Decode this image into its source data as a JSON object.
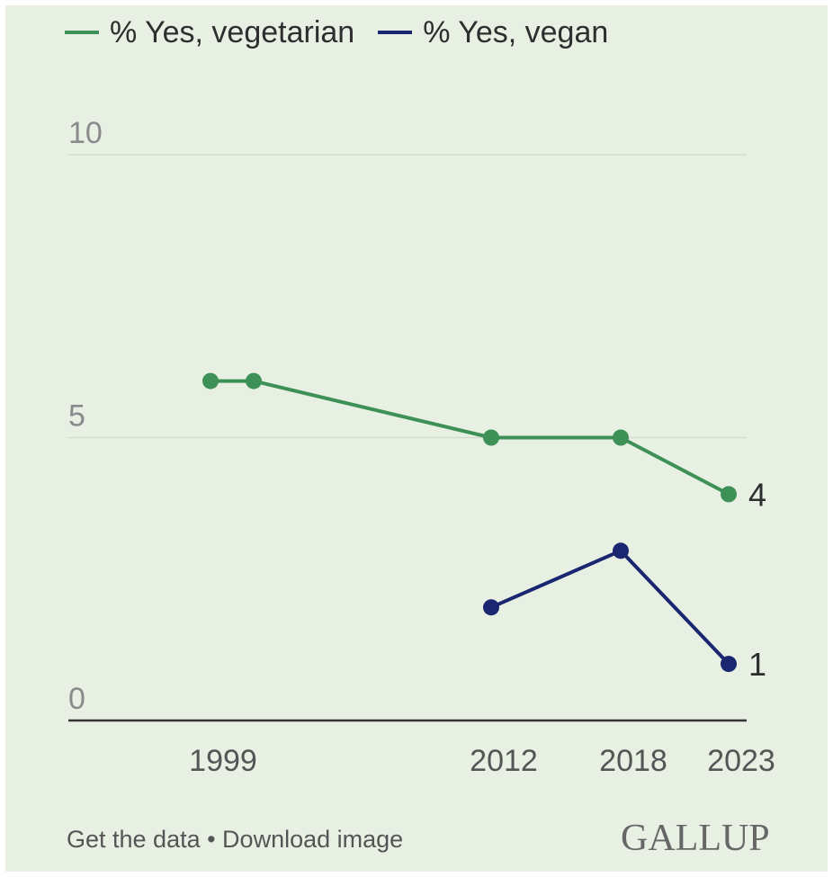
{
  "chart_data": {
    "type": "line",
    "x": [
      1999,
      2001,
      2012,
      2018,
      2023
    ],
    "xticks": [
      "1999",
      "2012",
      "2018",
      "2023"
    ],
    "yticks": [
      "10",
      "5",
      "0"
    ],
    "ylim": [
      0,
      10
    ],
    "xlim": [
      1999,
      2023
    ],
    "grid": true,
    "legend_position": "top-left",
    "series": [
      {
        "name": "% Yes, vegetarian",
        "color": "#3d9156",
        "x": [
          1999,
          2001,
          2012,
          2018,
          2023
        ],
        "values": [
          6,
          6,
          5,
          5,
          4
        ],
        "end_label": "4"
      },
      {
        "name": "% Yes, vegan",
        "color": "#1a2670",
        "x": [
          2012,
          2018,
          2023
        ],
        "values": [
          2,
          3,
          1
        ],
        "end_label": "1"
      }
    ]
  },
  "footer": {
    "links": "Get the data • Download image",
    "brand": "GALLUP"
  }
}
